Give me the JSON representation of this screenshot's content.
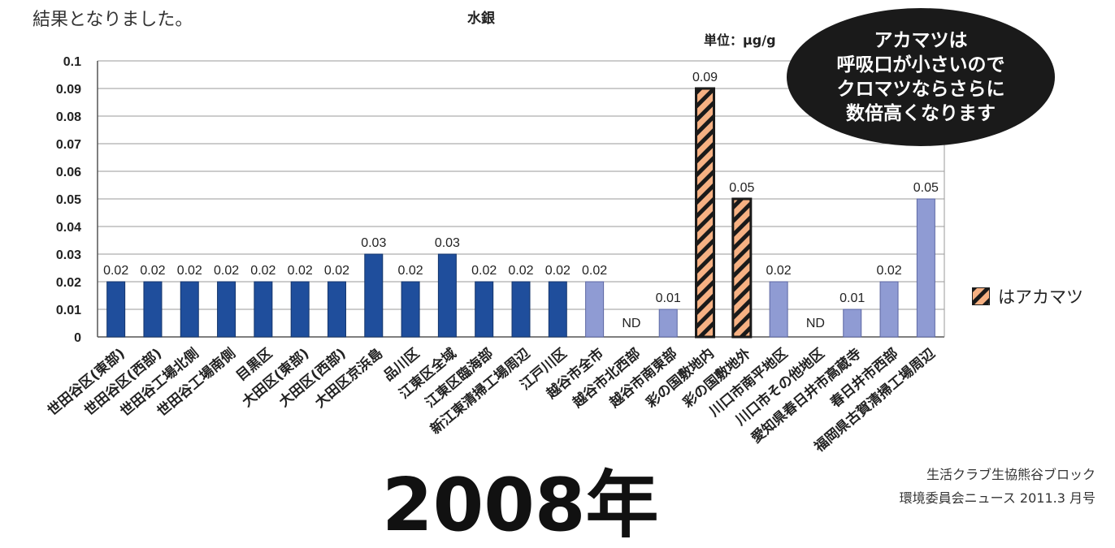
{
  "intro_text": "結果となりました。",
  "unit_label": "単位：μg/g",
  "bubble": {
    "lines": [
      "アカマツは",
      "呼吸口が小さいので",
      "クロマツならさらに",
      "数倍高くなります"
    ]
  },
  "legend": {
    "label": "はアカマツ"
  },
  "credit": {
    "line1": "生活クラブ生協熊谷ブロック",
    "line2": "環境委員会ニュース 2011.3 月号"
  },
  "big_year": "2008年",
  "colors": {
    "dark_blue": "#1f4e9c",
    "light_blue": "#8f9bd3",
    "akamatsu_orange": "#f6b183",
    "akamatsu_stripe": "#1a1a1a",
    "bubble_bg": "#1a1a1a"
  },
  "chart_data": {
    "type": "bar",
    "title": "水銀",
    "ylim": [
      0,
      0.1
    ],
    "yticks": [
      "0",
      "0.01",
      "0.02",
      "0.03",
      "0.04",
      "0.05",
      "0.06",
      "0.07",
      "0.08",
      "0.09",
      "0.1"
    ],
    "grid": true,
    "categories": [
      "世田谷区(東部)",
      "世田谷区(西部)",
      "世田谷工場北側",
      "世田谷工場南側",
      "目黒区",
      "大田区(東部)",
      "大田区(西部)",
      "大田区京浜島",
      "品川区",
      "江東区全域",
      "江東区臨海部",
      "新江東清掃工場周辺",
      "江戸川区",
      "越谷市全市",
      "越谷市北西部",
      "越谷市南東部",
      "彩の国敷地内",
      "彩の国敷地外",
      "川口市南平地区",
      "川口市その他地区",
      "愛知県春日井市高蔵寺",
      "春日井市西部",
      "福岡県古賀清掃工場周辺"
    ],
    "values": [
      0.02,
      0.02,
      0.02,
      0.02,
      0.02,
      0.02,
      0.02,
      0.03,
      0.02,
      0.03,
      0.02,
      0.02,
      0.02,
      0.02,
      null,
      0.01,
      0.09,
      0.05,
      0.02,
      null,
      0.01,
      0.02,
      0.05
    ],
    "labels": [
      "0.02",
      "0.02",
      "0.02",
      "0.02",
      "0.02",
      "0.02",
      "0.02",
      "0.03",
      "0.02",
      "0.03",
      "0.02",
      "0.02",
      "0.02",
      "0.02",
      "ND",
      "0.01",
      "0.09",
      "0.05",
      "0.02",
      "ND",
      "0.01",
      "0.02",
      "0.05"
    ],
    "bar_style": [
      "dark",
      "dark",
      "dark",
      "dark",
      "dark",
      "dark",
      "dark",
      "dark",
      "dark",
      "dark",
      "dark",
      "dark",
      "dark",
      "light",
      "light",
      "light",
      "akamatsu",
      "akamatsu",
      "light",
      "light",
      "light",
      "light",
      "light"
    ]
  }
}
